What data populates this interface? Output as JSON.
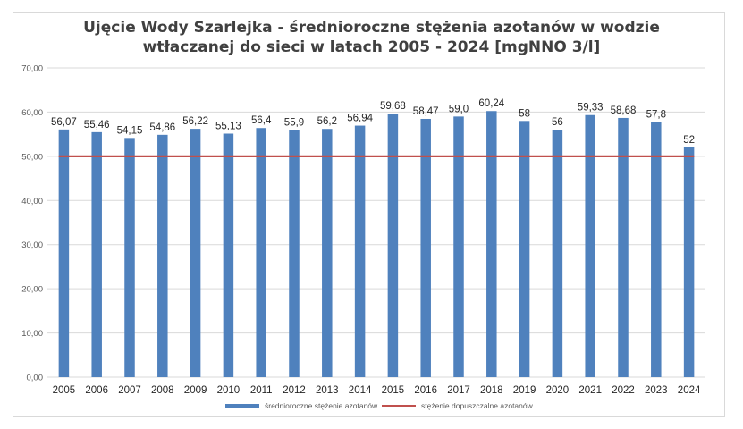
{
  "chart_data": {
    "type": "bar",
    "title_line1": "Ujęcie Wody Szarlejka - średnioroczne stężenia azotanów w wodzie",
    "title_line2": "wtłaczanej do sieci w latach 2005 - 2024 [mgNNO 3/l]",
    "categories": [
      "2005",
      "2006",
      "2007",
      "2008",
      "2009",
      "2010",
      "2011",
      "2012",
      "2013",
      "2014",
      "2015",
      "2016",
      "2017",
      "2018",
      "2019",
      "2020",
      "2021",
      "2022",
      "2023",
      "2024"
    ],
    "series": [
      {
        "name": "średnioroczne stężenie azotanów",
        "color": "#4f81bd",
        "values": [
          56.07,
          55.46,
          54.15,
          54.86,
          56.22,
          55.13,
          56.4,
          55.9,
          56.2,
          56.94,
          59.68,
          58.47,
          59.0,
          60.24,
          58,
          56,
          59.33,
          58.68,
          57.8,
          52
        ],
        "data_labels": [
          "56,07",
          "55,46",
          "54,15",
          "54,86",
          "56,22",
          "55,13",
          "56,4",
          "55,9",
          "56,2",
          "56,94",
          "59,68",
          "58,47",
          "59,0",
          "60,24",
          "58",
          "56",
          "59,33",
          "58,68",
          "57,8",
          "52"
        ]
      },
      {
        "name": "stężenie dopuszczalne azotanów",
        "color": "#c0504d",
        "type": "line",
        "value": 50
      }
    ],
    "ylim": [
      0,
      70
    ],
    "yticks": [
      0,
      10,
      20,
      30,
      40,
      50,
      60,
      70
    ],
    "ytick_labels": [
      "0,00",
      "10,00",
      "20,00",
      "30,00",
      "40,00",
      "50,00",
      "60,00",
      "70,00"
    ],
    "grid": true,
    "legend": "bottom"
  }
}
